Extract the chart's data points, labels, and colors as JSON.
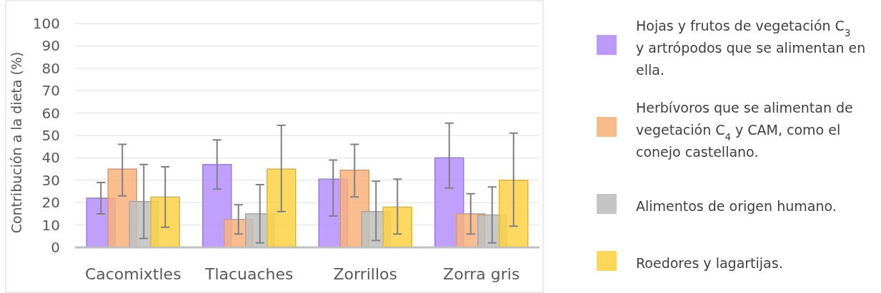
{
  "chart_data": {
    "type": "bar",
    "ylabel": "Contribución a la dieta (%)",
    "categories": [
      "Cacomixtles",
      "Tlacuaches",
      "Zorrillos",
      "Zorra gris"
    ],
    "series": [
      {
        "name": "Hojas y frutos de vegetación C$_{3}$ y artrópodos que se alimentan en ella.",
        "color": "#b48ffc",
        "values": [
          22,
          37,
          30.5,
          40
        ],
        "errors": [
          [
            15,
            29
          ],
          [
            26,
            48
          ],
          [
            14,
            39
          ],
          [
            26.5,
            55.5
          ]
        ]
      },
      {
        "name": "Herbívoros que se alimentan de vegetación C$_{4}$ y CAM, como el conejo castellano.",
        "color": "#f8b27c",
        "values": [
          35,
          12.5,
          34.5,
          15
        ],
        "errors": [
          [
            23,
            46
          ],
          [
            6,
            19
          ],
          [
            22.5,
            46
          ],
          [
            6,
            24
          ]
        ]
      },
      {
        "name": "Alimentos de origen humano.",
        "color": "#bfbfbf",
        "values": [
          20.5,
          15,
          16,
          14.5
        ],
        "errors": [
          [
            4,
            37
          ],
          [
            2,
            28
          ],
          [
            3,
            29.5
          ],
          [
            2,
            27
          ]
        ]
      },
      {
        "name": "Roedores y lagartijas.",
        "color": "#fed246",
        "values": [
          22.5,
          35,
          18,
          30
        ],
        "errors": [
          [
            9,
            36
          ],
          [
            16,
            54.5
          ],
          [
            6,
            30.5
          ],
          [
            9.5,
            51
          ]
        ]
      }
    ],
    "ylim": [
      0,
      100
    ],
    "yticks": [
      0,
      10,
      20,
      30,
      40,
      50,
      60,
      70,
      80,
      90,
      100
    ],
    "grid": "y",
    "legend": "right"
  }
}
